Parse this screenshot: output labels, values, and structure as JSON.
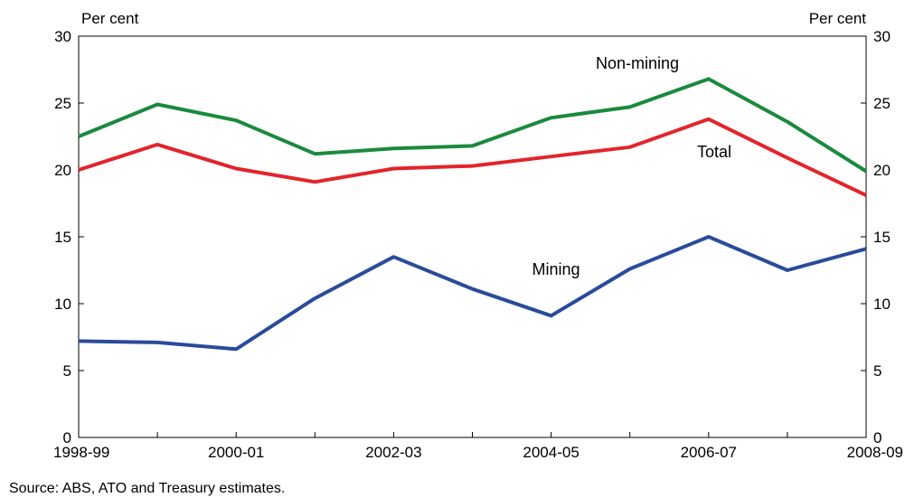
{
  "chart_data": {
    "type": "line",
    "y_unit_left": "Per cent",
    "y_unit_right": "Per cent",
    "ylim": [
      0,
      30
    ],
    "yticks": [
      0,
      5,
      10,
      15,
      20,
      25,
      30
    ],
    "x": [
      "1998-99",
      "1999-00",
      "2000-01",
      "2001-02",
      "2002-03",
      "2003-04",
      "2004-05",
      "2005-06",
      "2006-07",
      "2007-08",
      "2008-09"
    ],
    "x_tick_labels": [
      "1998-99",
      "2000-01",
      "2002-03",
      "2004-05",
      "2006-07",
      "2008-09"
    ],
    "series": [
      {
        "name": "Non-mining",
        "color": "#1a8a3c",
        "values": [
          22.5,
          24.9,
          23.7,
          21.2,
          21.6,
          21.8,
          23.9,
          24.7,
          26.8,
          23.6,
          19.9
        ]
      },
      {
        "name": "Total",
        "color": "#e3242b",
        "values": [
          20.0,
          21.9,
          20.1,
          19.1,
          20.1,
          20.3,
          21.0,
          21.7,
          23.8,
          20.9,
          18.1
        ]
      },
      {
        "name": "Mining",
        "color": "#2a4b9b",
        "values": [
          7.2,
          7.1,
          6.6,
          10.4,
          13.5,
          11.1,
          9.1,
          12.6,
          15.0,
          12.5,
          14.1
        ]
      }
    ],
    "grid": false,
    "legend": "inline labels",
    "source": "Source: ABS, ATO and Treasury estimates."
  }
}
